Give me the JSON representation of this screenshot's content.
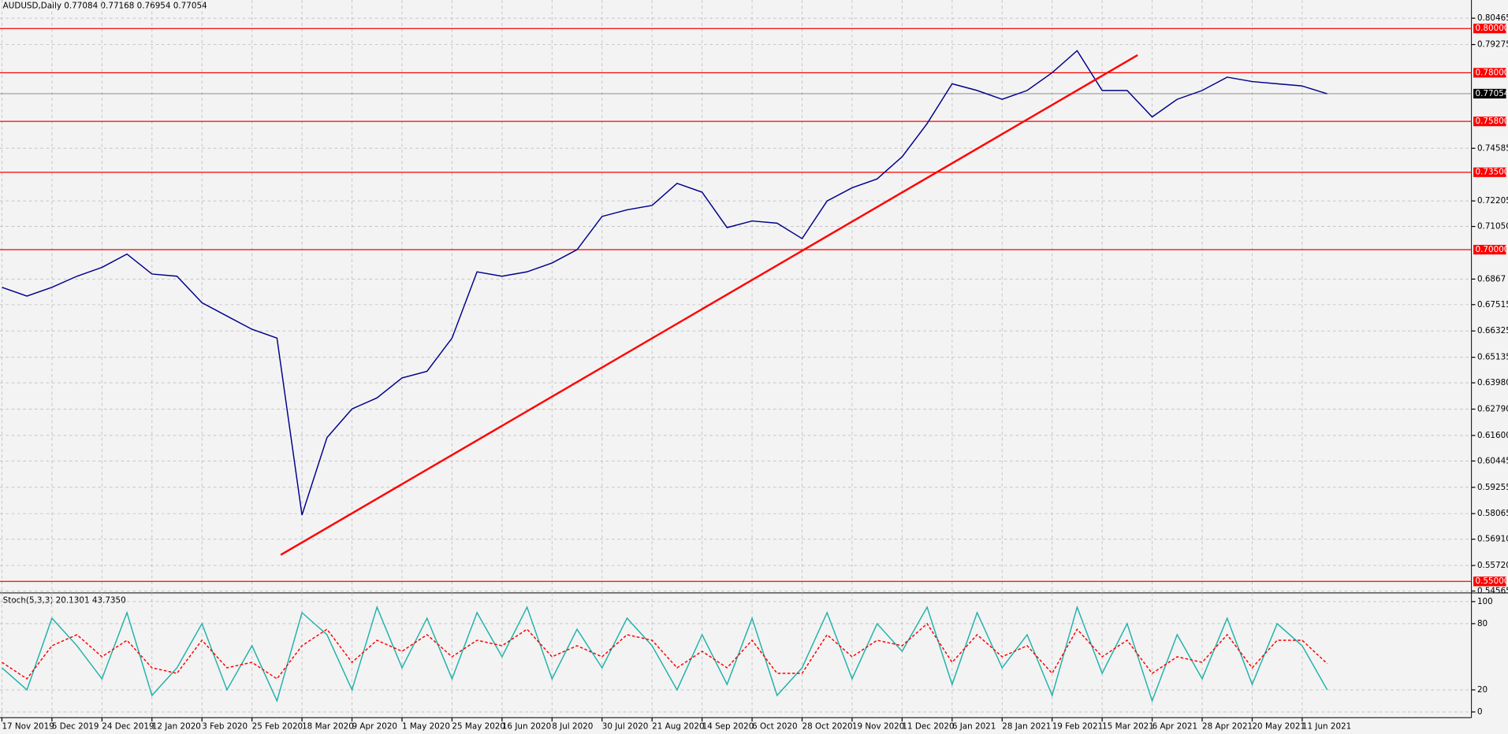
{
  "chart_data": [
    {
      "type": "line",
      "title": "AUDUSD,Daily  0.77084 0.77168 0.76954 0.77054",
      "categories": [
        "17 Nov 2019",
        null,
        "5 Dec 2019",
        null,
        "24 Dec 2019",
        null,
        "12 Jan 2020",
        null,
        "3 Feb 2020",
        null,
        "25 Feb 2020",
        null,
        "18 Mar 2020",
        null,
        "9 Apr 2020",
        null,
        "1 May 2020",
        null,
        "25 May 2020",
        null,
        "16 Jun 2020",
        null,
        "8 Jul 2020",
        null,
        "30 Jul 2020",
        null,
        "21 Aug 2020",
        null,
        "14 Sep 2020",
        null,
        "6 Oct 2020",
        null,
        "28 Oct 2020",
        null,
        "19 Nov 2020",
        null,
        "11 Dec 2020",
        null,
        "6 Jan 2021",
        null,
        "28 Jan 2021",
        null,
        "19 Feb 2021",
        null,
        "15 Mar 2021",
        null,
        "6 Apr 2021",
        null,
        "28 Apr 2021",
        null,
        "20 May 2021",
        null,
        "11 Jun 2021",
        null
      ],
      "values": [
        0.683,
        0.679,
        0.683,
        0.688,
        0.692,
        0.698,
        0.689,
        0.688,
        0.676,
        0.67,
        0.664,
        0.66,
        0.58,
        0.615,
        0.628,
        0.633,
        0.642,
        0.645,
        0.66,
        0.69,
        0.688,
        0.69,
        0.694,
        0.7,
        0.715,
        0.718,
        0.72,
        0.73,
        0.726,
        0.71,
        0.713,
        0.712,
        0.705,
        0.722,
        0.728,
        0.732,
        0.742,
        0.757,
        0.775,
        0.772,
        0.768,
        0.772,
        0.78,
        0.79,
        0.772,
        0.772,
        0.76,
        0.768,
        0.772,
        0.778,
        0.776,
        0.775,
        0.774,
        0.7705
      ],
      "color": "#00008b",
      "ylim": [
        0.54565,
        0.80465
      ],
      "yticks": [
        0.80465,
        0.79275,
        0.74585,
        0.72205,
        {
          "value": 0.7105,
          "label": "0.71050"
        },
        0.6867,
        0.67515,
        0.66325,
        0.65135,
        {
          "value": 0.6398,
          "label": "0.63980"
        },
        {
          "value": 0.6279,
          "label": "0.62790"
        },
        {
          "value": 0.616,
          "label": "0.61600"
        },
        0.60445,
        0.59255,
        0.58065,
        {
          "value": 0.5691,
          "label": "0.56910"
        },
        {
          "value": 0.5572,
          "label": "0.55720"
        },
        0.54565
      ],
      "levels": [
        {
          "value": 0.8,
          "label": "0.80000"
        },
        {
          "value": 0.78,
          "label": "0.78000"
        },
        {
          "value": 0.758,
          "label": "0.75800"
        },
        {
          "value": 0.735,
          "label": "0.73500"
        },
        {
          "value": 0.7,
          "label": "0.70000"
        },
        {
          "value": 0.55,
          "label": "0.55000"
        }
      ],
      "level_color": "#ff0000",
      "current_price": 0.77054,
      "trendline": {
        "x": [
          11.15,
          45.42
        ],
        "y": [
          0.562,
          0.788
        ],
        "color": "#ff0000"
      },
      "grid": true
    },
    {
      "type": "line",
      "title": "Stoch(5,3,3) 20.1301 43.7350",
      "series": [
        {
          "color": "#20b2aa",
          "values": [
            40,
            20,
            85,
            60,
            30,
            90,
            15,
            40,
            80,
            20,
            60,
            10,
            90,
            70,
            20,
            95,
            40,
            85,
            30,
            90,
            50,
            95,
            30,
            75,
            40,
            85,
            60,
            20,
            70,
            25,
            85,
            15,
            40,
            90,
            30,
            80,
            55,
            95,
            25,
            90,
            40,
            70,
            15,
            95,
            35,
            80,
            10,
            70,
            30,
            85,
            25,
            80,
            60,
            20.1301
          ]
        },
        {
          "color": "#ff0000",
          "values": [
            45,
            30,
            60,
            70,
            50,
            65,
            40,
            35,
            65,
            40,
            45,
            30,
            60,
            75,
            45,
            65,
            55,
            70,
            50,
            65,
            60,
            75,
            50,
            60,
            50,
            70,
            65,
            40,
            55,
            40,
            65,
            35,
            35,
            70,
            50,
            65,
            60,
            80,
            45,
            70,
            50,
            60,
            35,
            75,
            50,
            65,
            35,
            50,
            45,
            70,
            40,
            65,
            65,
            43.735
          ]
        }
      ],
      "ylim": [
        0,
        100
      ],
      "yticks": [
        0,
        20,
        80,
        100
      ],
      "grid": true
    }
  ]
}
